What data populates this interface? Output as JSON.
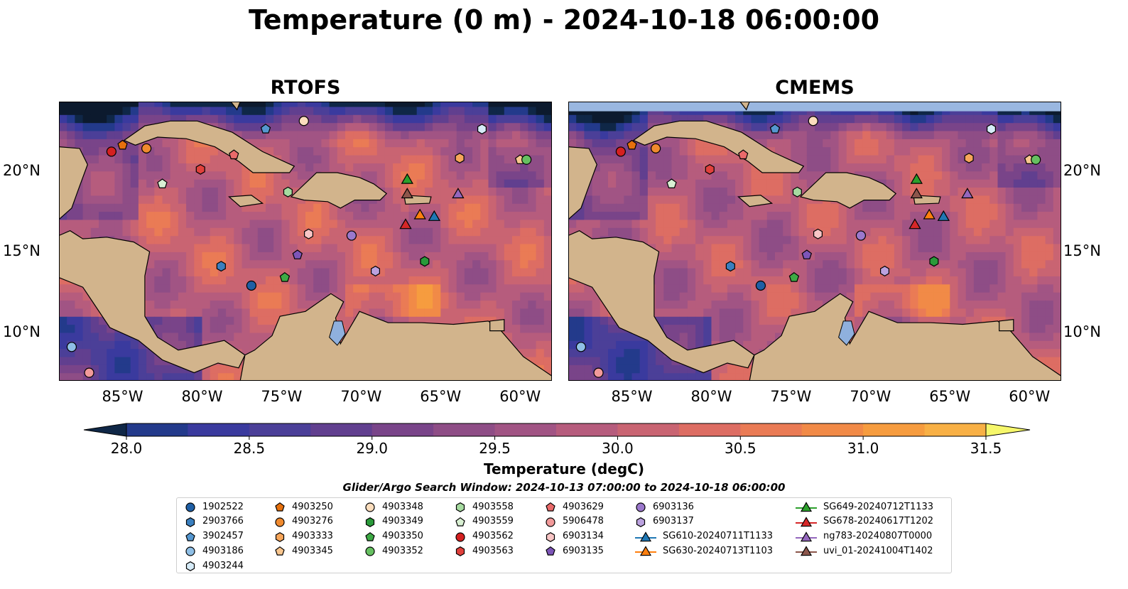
{
  "title": "Temperature (0 m) - 2024-10-18 06:00:00",
  "panels": [
    {
      "title": "RTOFS",
      "nodata_band": false
    },
    {
      "title": "CMEMS",
      "nodata_band": true
    }
  ],
  "map": {
    "lon_range": [
      -89,
      -58
    ],
    "lat_range": [
      7,
      24.3
    ],
    "lat_ticks": [
      {
        "lat": 10,
        "label": "10°N"
      },
      {
        "lat": 15,
        "label": "15°N"
      },
      {
        "lat": 20,
        "label": "20°N"
      }
    ],
    "lon_ticks": [
      {
        "lon": -85,
        "label": "85°W"
      },
      {
        "lon": -80,
        "label": "80°W"
      },
      {
        "lon": -75,
        "label": "75°W"
      },
      {
        "lon": -70,
        "label": "70°W"
      },
      {
        "lon": -65,
        "label": "65°W"
      },
      {
        "lon": -60,
        "label": "60°W"
      }
    ],
    "land_color": "#d2b48c",
    "lake_color": "#8fb0dd",
    "nodata_color": "#9ab7e0"
  },
  "colorbar": {
    "label": "Temperature (degC)",
    "min": 28.0,
    "max": 31.5,
    "step": 0.25,
    "ticks": [
      "28.0",
      "28.5",
      "29.0",
      "29.5",
      "30.0",
      "30.5",
      "31.0",
      "31.5"
    ],
    "colors": [
      "#0f2747",
      "#233a8b",
      "#3a3a9e",
      "#4b3f98",
      "#613f8f",
      "#794489",
      "#8e4d86",
      "#a15484",
      "#b65c7d",
      "#c96472",
      "#dd6d63",
      "#ea7b55",
      "#f18a47",
      "#f69c3f",
      "#f8b045",
      "#f6c74f",
      "#f0de5c"
    ],
    "under_color": "#0c1a2e",
    "over_color": "#f6f76b"
  },
  "search_window": "Glider/Argo Search Window: 2024-10-13 07:00:00 to 2024-10-18 06:00:00",
  "legend": [
    {
      "id": "1902522",
      "marker": "circle",
      "color": "#1f5fa5"
    },
    {
      "id": "2903766",
      "marker": "hexagon",
      "color": "#3a7fbf"
    },
    {
      "id": "3902457",
      "marker": "pentagon",
      "color": "#5597d0"
    },
    {
      "id": "4903186",
      "marker": "circle",
      "color": "#8fbfe6"
    },
    {
      "id": "4903244",
      "marker": "hexagon",
      "color": "#d6ebf8"
    },
    {
      "id": "4903250",
      "marker": "pentagon",
      "color": "#e6700d"
    },
    {
      "id": "4903276",
      "marker": "circle",
      "color": "#f08a2e"
    },
    {
      "id": "4903333",
      "marker": "hexagon",
      "color": "#f7a65a"
    },
    {
      "id": "4903345",
      "marker": "pentagon",
      "color": "#f9c68f"
    },
    {
      "id": "4903348",
      "marker": "circle",
      "color": "#fbddbd"
    },
    {
      "id": "4903349",
      "marker": "hexagon",
      "color": "#2a9a3a"
    },
    {
      "id": "4903350",
      "marker": "pentagon",
      "color": "#3daa45"
    },
    {
      "id": "4903352",
      "marker": "circle",
      "color": "#66c061"
    },
    {
      "id": "4903558",
      "marker": "hexagon",
      "color": "#a6dba0"
    },
    {
      "id": "4903559",
      "marker": "pentagon",
      "color": "#d9f0d3"
    },
    {
      "id": "4903562",
      "marker": "circle",
      "color": "#d42020"
    },
    {
      "id": "4903563",
      "marker": "hexagon",
      "color": "#e0413c"
    },
    {
      "id": "4903629",
      "marker": "pentagon",
      "color": "#ea6a6a"
    },
    {
      "id": "5906478",
      "marker": "circle",
      "color": "#f29a9a"
    },
    {
      "id": "6903134",
      "marker": "hexagon",
      "color": "#f8c5c5"
    },
    {
      "id": "6903135",
      "marker": "pentagon",
      "color": "#7d55b8"
    },
    {
      "id": "6903136",
      "marker": "circle",
      "color": "#9b78cc"
    },
    {
      "id": "6903137",
      "marker": "hexagon",
      "color": "#bba2df"
    },
    {
      "id": "SG610-20240711T1133",
      "marker": "triangle",
      "color": "#1f77b4"
    },
    {
      "id": "SG630-20240713T1103",
      "marker": "triangle",
      "color": "#ff7f0e"
    },
    {
      "id": "SG649-20240712T1133",
      "marker": "triangle",
      "color": "#2ca02c"
    },
    {
      "id": "SG678-20240617T1202",
      "marker": "triangle",
      "color": "#d62728"
    },
    {
      "id": "ng783-20240807T0000",
      "marker": "triangle",
      "color": "#9467bd"
    },
    {
      "id": "uvi_01-20241004T1402",
      "marker": "triangle",
      "color": "#8c564b"
    }
  ],
  "floats": [
    {
      "id": "1902522",
      "lon": -76.9,
      "lat": 12.9
    },
    {
      "id": "2903766",
      "lon": -78.8,
      "lat": 14.1
    },
    {
      "id": "3902457",
      "lon": -76.0,
      "lat": 22.6
    },
    {
      "id": "4903186",
      "lon": -88.2,
      "lat": 9.1
    },
    {
      "id": "4903244",
      "lon": -62.4,
      "lat": 22.6
    },
    {
      "id": "4903250",
      "lon": -85.0,
      "lat": 21.6
    },
    {
      "id": "4903276",
      "lon": -83.5,
      "lat": 21.4
    },
    {
      "id": "4903333",
      "lon": -63.8,
      "lat": 20.8
    },
    {
      "id": "4903345",
      "lon": -60.0,
      "lat": 20.7
    },
    {
      "id": "4903348",
      "lon": -73.6,
      "lat": 23.1
    },
    {
      "id": "4903349",
      "lon": -66.0,
      "lat": 14.4
    },
    {
      "id": "4903350",
      "lon": -74.8,
      "lat": 13.4
    },
    {
      "id": "4903352",
      "lon": -59.6,
      "lat": 20.7
    },
    {
      "id": "4903558",
      "lon": -74.6,
      "lat": 18.7
    },
    {
      "id": "4903559",
      "lon": -82.5,
      "lat": 19.2
    },
    {
      "id": "4903562",
      "lon": -85.7,
      "lat": 21.2
    },
    {
      "id": "4903563",
      "lon": -80.1,
      "lat": 20.1
    },
    {
      "id": "4903629",
      "lon": -78.0,
      "lat": 21.0
    },
    {
      "id": "5906478",
      "lon": -87.1,
      "lat": 7.5
    },
    {
      "id": "6903134",
      "lon": -73.3,
      "lat": 16.1
    },
    {
      "id": "6903135",
      "lon": -74.0,
      "lat": 14.8
    },
    {
      "id": "6903136",
      "lon": -70.6,
      "lat": 16.0
    },
    {
      "id": "6903137",
      "lon": -69.1,
      "lat": 13.8
    },
    {
      "id": "SG610-20240711T1133",
      "lon": -65.4,
      "lat": 17.2
    },
    {
      "id": "SG630-20240713T1103",
      "lon": -66.3,
      "lat": 17.3
    },
    {
      "id": "SG649-20240712T1133",
      "lon": -67.1,
      "lat": 19.5
    },
    {
      "id": "SG678-20240617T1202",
      "lon": -67.2,
      "lat": 16.7
    },
    {
      "id": "ng783-20240807T0000",
      "lon": -63.9,
      "lat": 18.6
    },
    {
      "id": "uvi_01-20241004T1402",
      "lon": -67.1,
      "lat": 18.6
    }
  ]
}
